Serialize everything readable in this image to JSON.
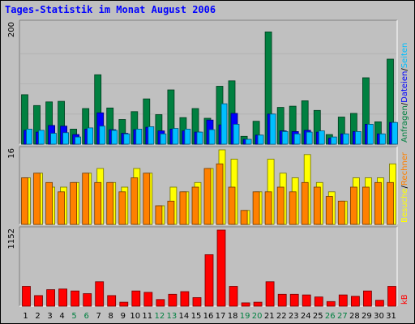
{
  "chart_data": {
    "type": "bar",
    "title": "Tages-Statistik im Monat August 2006",
    "categories": [
      "1",
      "2",
      "3",
      "4",
      "5",
      "6",
      "7",
      "8",
      "9",
      "10",
      "11",
      "12",
      "13",
      "14",
      "15",
      "16",
      "17",
      "18",
      "19",
      "20",
      "21",
      "22",
      "23",
      "24",
      "25",
      "26",
      "27",
      "28",
      "29",
      "30",
      "31"
    ],
    "weekend_days": [
      "5",
      "6",
      "12",
      "13",
      "19",
      "20",
      "26",
      "27"
    ],
    "panels": [
      {
        "id": "requests",
        "ymax_label": "200",
        "ylim": [
          0,
          200
        ],
        "series": [
          {
            "name": "Anfragen",
            "color": "#008040",
            "values": [
              82,
              64,
              70,
              71,
              25,
              59,
              115,
              60,
              41,
              54,
              75,
              49,
              90,
              44,
              59,
              43,
              96,
              105,
              13,
              38,
              186,
              61,
              63,
              72,
              56,
              16,
              45,
              51,
              110,
              37,
              141
            ]
          },
          {
            "name": "Dateien",
            "color": "#0000ff",
            "values": [
              23,
              20,
              31,
              30,
              16,
              25,
              52,
              24,
              18,
              24,
              28,
              22,
              25,
              22,
              20,
              40,
              32,
              51,
              8,
              15,
              50,
              22,
              21,
              23,
              20,
              10,
              17,
              21,
              33,
              17,
              36
            ]
          },
          {
            "name": "Seiten",
            "color": "#00bfff",
            "values": [
              25,
              23,
              18,
              19,
              12,
              27,
              30,
              23,
              17,
              25,
              29,
              17,
              26,
              25,
              20,
              24,
              67,
              33,
              8,
              15,
              50,
              21,
              17,
              20,
              22,
              12,
              17,
              21,
              33,
              17,
              36
            ]
          }
        ]
      },
      {
        "id": "visits",
        "ymax_label": "16",
        "ylim": [
          0,
          16
        ],
        "series": [
          {
            "name": "Besuche",
            "color": "#ffff00",
            "values": [
              10,
              11,
              8,
              8,
              9,
              11,
              12,
              9,
              8,
              12,
              11,
              4,
              8,
              7,
              9,
              12,
              16,
              14,
              3,
              7,
              14,
              11,
              10,
              15,
              9,
              7,
              5,
              10,
              10,
              10,
              13
            ]
          },
          {
            "name": "Rechner",
            "color": "#ff8000",
            "values": [
              10,
              11,
              9,
              7,
              9,
              11,
              9,
              9,
              7,
              10,
              11,
              4,
              5,
              7,
              8,
              12,
              13,
              8,
              3,
              7,
              7,
              8,
              7,
              9,
              8,
              6,
              5,
              8,
              8,
              9,
              9
            ]
          }
        ]
      },
      {
        "id": "kb",
        "ymax_label": "1152",
        "ylim": [
          0,
          1152
        ],
        "series": [
          {
            "name": "kB",
            "color": "#ff0000",
            "values": [
              300,
              160,
              250,
              260,
              230,
              190,
              370,
              160,
              60,
              230,
              210,
              100,
              180,
              220,
              130,
              780,
              1152,
              300,
              50,
              60,
              370,
              180,
              180,
              170,
              140,
              70,
              170,
              150,
              230,
              90,
              300
            ]
          }
        ]
      }
    ],
    "axis_labels_right": {
      "requests": [
        {
          "text": "Anfragen",
          "color": "#008040"
        },
        {
          "text": "Dateien",
          "color": "#0000ff"
        },
        {
          "text": "Seiten",
          "color": "#00bfff"
        }
      ],
      "visits": [
        {
          "text": "Besuche",
          "color": "#ffff00"
        },
        {
          "text": "Rechner",
          "color": "#ff8000"
        }
      ],
      "kb": [
        {
          "text": "kB",
          "color": "#ff0000"
        }
      ]
    },
    "colors": {
      "background": "#c0c0c0",
      "plot_background": "#c0c0c0",
      "title": "#0000ff",
      "day_label": "#000000",
      "weekend_label": "#008040",
      "grid": "#ffffff"
    }
  }
}
